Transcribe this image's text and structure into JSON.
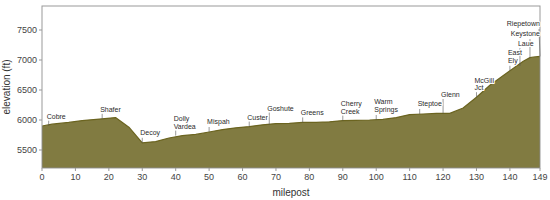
{
  "chart_data": {
    "type": "area",
    "xlabel": "milepost",
    "ylabel": "elevation (ft)",
    "x": [
      0,
      3,
      8,
      12,
      18,
      22,
      26,
      30,
      34,
      38,
      42,
      46,
      50,
      54,
      58,
      62,
      66,
      70,
      74,
      78,
      82,
      86,
      90,
      94,
      98,
      102,
      106,
      110,
      114,
      118,
      122,
      126,
      130,
      134,
      137,
      140,
      142,
      144,
      146,
      147,
      149
    ],
    "values": [
      5900,
      5930,
      5960,
      5990,
      6020,
      6040,
      5880,
      5620,
      5640,
      5700,
      5740,
      5760,
      5800,
      5840,
      5870,
      5890,
      5920,
      5940,
      5945,
      5960,
      5960,
      5970,
      5990,
      5995,
      6000,
      6010,
      6040,
      6090,
      6100,
      6110,
      6110,
      6200,
      6380,
      6580,
      6700,
      6820,
      6900,
      6980,
      7040,
      7050,
      7060
    ],
    "color": "#6B6420",
    "xlim": [
      0,
      149
    ],
    "ylim": [
      5200,
      7900
    ],
    "xticks": [
      0,
      10,
      20,
      30,
      40,
      50,
      60,
      70,
      80,
      90,
      100,
      110,
      120,
      130,
      140,
      149
    ],
    "yticks": [
      5500,
      6000,
      6500,
      7000,
      7500
    ],
    "grid": false,
    "annotations": [
      {
        "label": "Cobre",
        "x": 2,
        "y": 5905
      },
      {
        "label": "Shafer",
        "x": 18,
        "y": 6020
      },
      {
        "label": "Decoy",
        "x": 30,
        "y": 5620
      },
      {
        "label": "Dolly\nVardea",
        "x": 40,
        "y": 5740
      },
      {
        "label": "Mispah",
        "x": 50,
        "y": 5800
      },
      {
        "label": "Custer",
        "x": 62,
        "y": 5890
      },
      {
        "label": "Goshute",
        "x": 68,
        "y": 5920
      },
      {
        "label": "Greens",
        "x": 78,
        "y": 5960
      },
      {
        "label": "Cherry\nCreek",
        "x": 90,
        "y": 5990
      },
      {
        "label": "Warm\nSprings",
        "x": 100,
        "y": 6000
      },
      {
        "label": "Steptoe",
        "x": 113,
        "y": 6100
      },
      {
        "label": "Glenn",
        "x": 120,
        "y": 6110
      },
      {
        "label": "McGill\nJct",
        "x": 130,
        "y": 6380
      },
      {
        "label": "East\nEly",
        "x": 140,
        "y": 6820
      },
      {
        "label": "Laue",
        "x": 143,
        "y": 6900
      },
      {
        "label": "Keystone",
        "x": 146,
        "y": 7040
      },
      {
        "label": "Riepetown",
        "x": 149,
        "y": 7060
      }
    ]
  }
}
